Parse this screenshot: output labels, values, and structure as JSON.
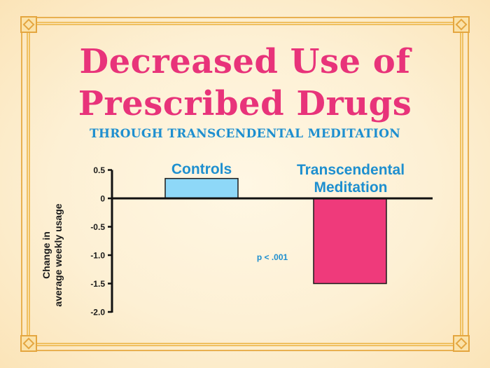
{
  "title_line1": "Decreased Use of",
  "title_line2": "Prescribed Drugs",
  "subtitle": "THROUGH TRANSCENDENTAL MEDITATION",
  "chart_data": {
    "type": "bar",
    "categories": [
      "Controls",
      "Transcendental Meditation"
    ],
    "values": [
      0.35,
      -1.5
    ],
    "ylabel_line1": "Change in",
    "ylabel_line2": "average weekly usage",
    "ylim": [
      -2.0,
      0.5
    ],
    "yticks": [
      "0.5",
      "0",
      "-0.5",
      "-1.0",
      "-1.5",
      "-2.0"
    ],
    "ytick_values": [
      0.5,
      0,
      -0.5,
      -1.0,
      -1.5,
      -2.0
    ],
    "annotation": "p < .001",
    "bar_colors": [
      "#8ed8f8",
      "#ef3a7b"
    ],
    "label_color": "#1e8fcf",
    "grid": false
  },
  "colors": {
    "title": "#e8337a",
    "subtitle": "#1e8fcf",
    "border": "#e8b050",
    "background": "#fdf0d4"
  }
}
